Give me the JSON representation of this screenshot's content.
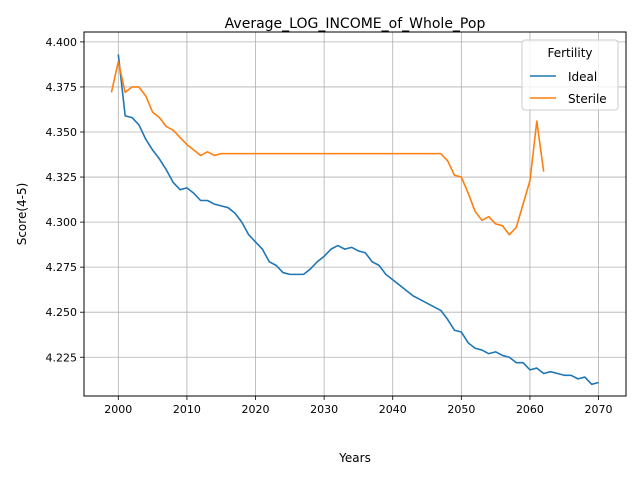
{
  "chart_data": {
    "type": "line",
    "title": "Average_LOG_INCOME_of_Whole_Pop",
    "xlabel": "Years",
    "ylabel": "Score(4-5)",
    "xlim": [
      1995,
      2074
    ],
    "ylim": [
      4.2035,
      4.4055
    ],
    "xticks": [
      2000,
      2010,
      2020,
      2030,
      2040,
      2050,
      2060,
      2070
    ],
    "xtick_labels": [
      "2000",
      "2010",
      "2020",
      "2030",
      "2040",
      "2050",
      "2060",
      "2070"
    ],
    "yticks": [
      4.225,
      4.25,
      4.275,
      4.3,
      4.325,
      4.35,
      4.375,
      4.4
    ],
    "ytick_labels": [
      "4.225",
      "4.250",
      "4.275",
      "4.300",
      "4.325",
      "4.350",
      "4.375",
      "4.400"
    ],
    "grid": true,
    "legend": {
      "title": "Fertility",
      "placement": "top-right"
    },
    "series": [
      {
        "name": "Ideal",
        "color": "#1f77b4",
        "x": [
          2000,
          2001,
          2002,
          2003,
          2004,
          2005,
          2006,
          2007,
          2008,
          2009,
          2010,
          2011,
          2012,
          2013,
          2014,
          2015,
          2016,
          2017,
          2018,
          2019,
          2020,
          2021,
          2022,
          2023,
          2024,
          2025,
          2026,
          2027,
          2028,
          2029,
          2030,
          2031,
          2032,
          2033,
          2034,
          2035,
          2036,
          2037,
          2038,
          2039,
          2040,
          2041,
          2042,
          2043,
          2044,
          2045,
          2046,
          2047,
          2048,
          2049,
          2050,
          2051,
          2052,
          2053,
          2054,
          2055,
          2056,
          2057,
          2058,
          2059,
          2060,
          2061,
          2062,
          2063,
          2064,
          2065,
          2066,
          2067,
          2068,
          2069,
          2070
        ],
        "y": [
          4.393,
          4.359,
          4.358,
          4.354,
          4.346,
          4.34,
          4.335,
          4.329,
          4.322,
          4.318,
          4.319,
          4.316,
          4.312,
          4.312,
          4.31,
          4.309,
          4.308,
          4.305,
          4.3,
          4.293,
          4.289,
          4.285,
          4.278,
          4.276,
          4.272,
          4.271,
          4.271,
          4.271,
          4.274,
          4.278,
          4.281,
          4.285,
          4.287,
          4.285,
          4.286,
          4.284,
          4.283,
          4.278,
          4.276,
          4.271,
          4.268,
          4.265,
          4.262,
          4.259,
          4.257,
          4.255,
          4.253,
          4.251,
          4.246,
          4.24,
          4.239,
          4.233,
          4.23,
          4.229,
          4.227,
          4.228,
          4.226,
          4.225,
          4.222,
          4.222,
          4.218,
          4.219,
          4.216,
          4.217,
          4.216,
          4.215,
          4.215,
          4.213,
          4.214,
          4.21,
          4.211
        ]
      },
      {
        "name": "Sterile",
        "color": "#ff7f0e",
        "x": [
          1999,
          2000,
          2001,
          2002,
          2003,
          2004,
          2005,
          2006,
          2007,
          2008,
          2009,
          2010,
          2011,
          2012,
          2013,
          2014,
          2015,
          2016,
          2017,
          2018,
          2019,
          2020,
          2025,
          2030,
          2035,
          2040,
          2045,
          2047,
          2048,
          2049,
          2050,
          2051,
          2052,
          2053,
          2054,
          2055,
          2056,
          2057,
          2058,
          2059,
          2060,
          2061,
          2062
        ],
        "y": [
          4.372,
          4.389,
          4.372,
          4.375,
          4.375,
          4.37,
          4.361,
          4.358,
          4.353,
          4.351,
          4.347,
          4.343,
          4.34,
          4.337,
          4.339,
          4.337,
          4.338,
          4.338,
          4.338,
          4.338,
          4.338,
          4.338,
          4.338,
          4.338,
          4.338,
          4.338,
          4.338,
          4.338,
          4.334,
          4.326,
          4.325,
          4.316,
          4.306,
          4.301,
          4.303,
          4.299,
          4.298,
          4.293,
          4.297,
          4.31,
          4.323,
          4.356,
          4.328
        ]
      }
    ]
  }
}
